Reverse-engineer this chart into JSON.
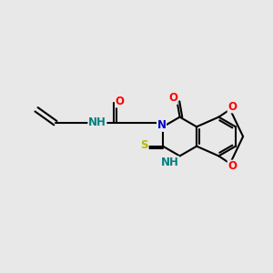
{
  "bg_color": "#e8e8e8",
  "bond_color": "#000000",
  "bond_width": 1.5,
  "atom_colors": {
    "O": "#ff0000",
    "N": "#0000cd",
    "S": "#b8b800",
    "C": "#000000",
    "H": "#008080"
  },
  "font_size": 8.5,
  "fig_size": [
    3.0,
    3.0
  ],
  "dpi": 100
}
